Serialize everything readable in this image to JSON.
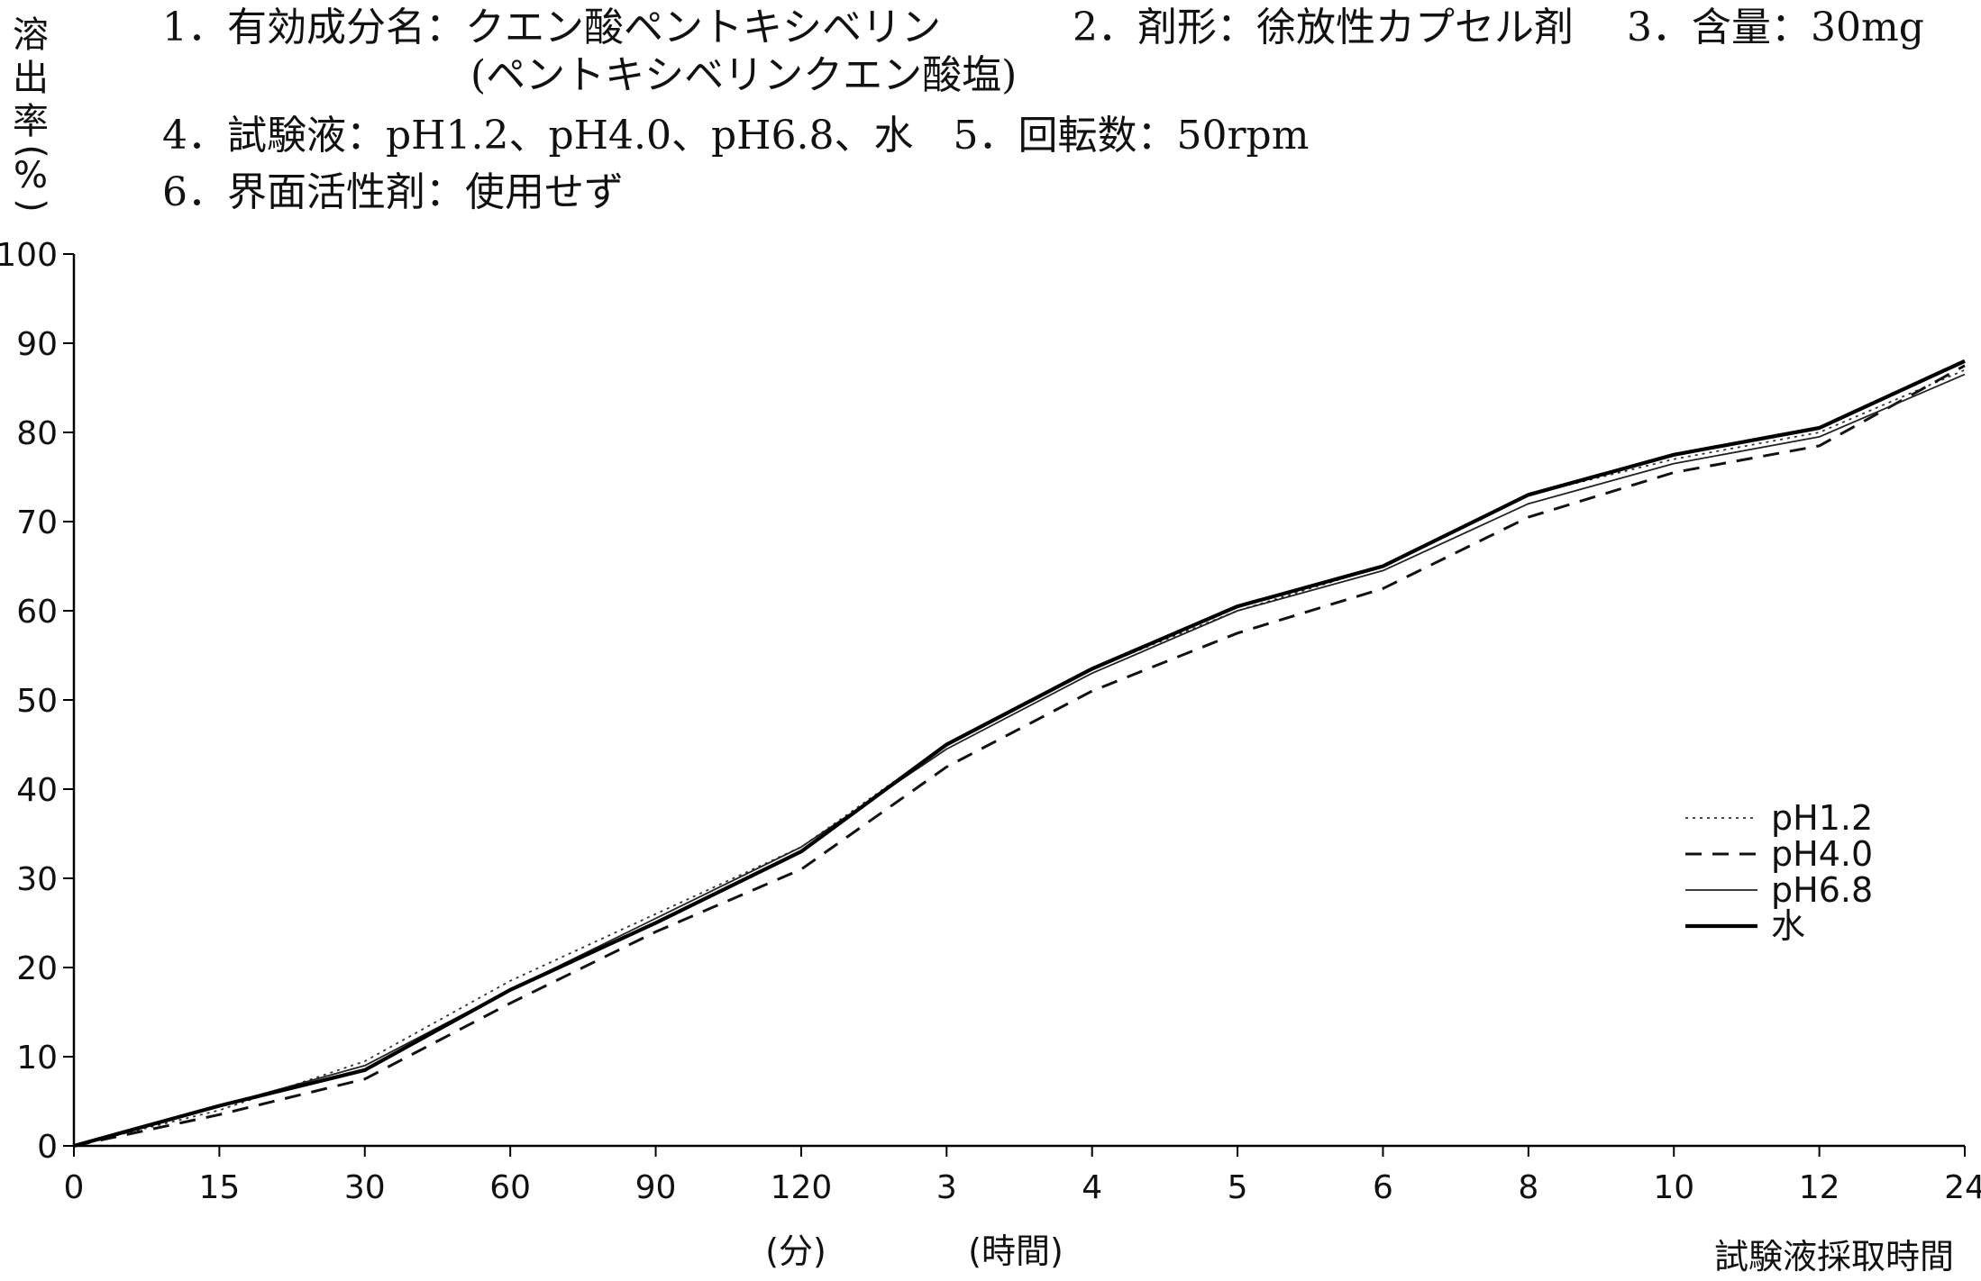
{
  "header": {
    "line1_left": "1．有効成分名：クエン酸ペントキシベリン",
    "line1_mid": "2．剤形：徐放性カプセル剤",
    "line1_right": "3．含量：30mg",
    "line2": "(ペントキシベリンクエン酸塩)",
    "line3": "4．試験液：pH1.2、pH4.0、pH6.8、水　5．回転数：50rpm",
    "line4": "6．界面活性剤：使用せず"
  },
  "chart_data": {
    "type": "line",
    "ylabel": "溶出率(%)",
    "ylabel_chars": [
      "溶",
      "出",
      "率",
      "(",
      "%",
      ")"
    ],
    "xlabel": "試験液採取時間",
    "x_unit_minutes": "(分)",
    "x_unit_hours": "(時間)",
    "ylim": [
      0,
      100
    ],
    "yticks": [
      "0",
      "10",
      "20",
      "30",
      "40",
      "50",
      "60",
      "70",
      "80",
      "90",
      "100"
    ],
    "categories": [
      "0",
      "15",
      "30",
      "60",
      "90",
      "120",
      "3",
      "4",
      "5",
      "6",
      "8",
      "10",
      "12",
      "24"
    ],
    "legend_position": "right",
    "series": [
      {
        "name": "pH1.2",
        "style": "dotted",
        "color": "#333333",
        "values": [
          0,
          4,
          9.5,
          18.5,
          26,
          33.5,
          45,
          53.5,
          60,
          65,
          73,
          77,
          80,
          87
        ]
      },
      {
        "name": "pH4.0",
        "style": "dashed",
        "color": "#111111",
        "values": [
          0,
          3.5,
          7.5,
          16,
          24,
          31,
          42.5,
          51,
          57.5,
          62.5,
          70.5,
          75.5,
          78.5,
          87.5
        ]
      },
      {
        "name": "pH6.8",
        "style": "thin",
        "color": "#222222",
        "values": [
          0,
          4.5,
          9,
          17.5,
          25.5,
          33.5,
          44.5,
          53,
          60,
          64.5,
          72,
          76.5,
          79.5,
          86.5
        ]
      },
      {
        "name": "水",
        "style": "thick",
        "color": "#000000",
        "values": [
          0,
          4.5,
          8.5,
          17.5,
          25,
          33,
          45,
          53.5,
          60.5,
          65,
          73,
          77.5,
          80.5,
          88
        ]
      }
    ]
  }
}
